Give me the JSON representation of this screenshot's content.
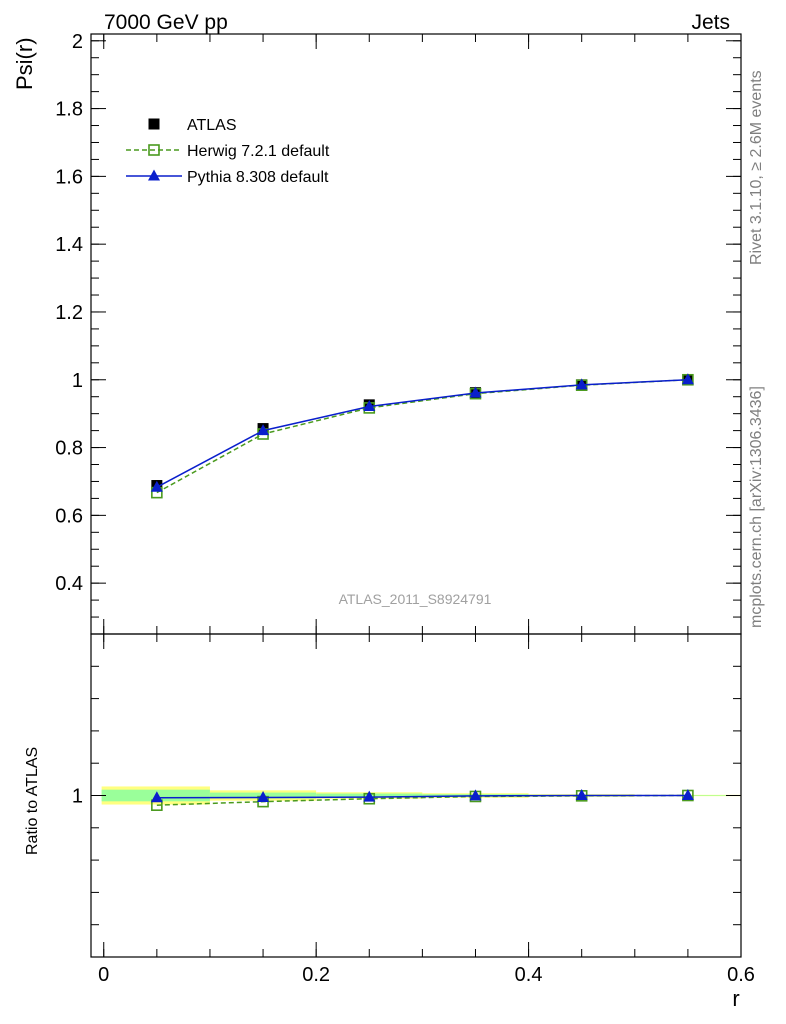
{
  "header": {
    "left_title": "7000 GeV pp",
    "right_title": "Jets"
  },
  "side_labels": {
    "rivet": "Rivet 3.1.10, ≥ 2.6M events",
    "mcplots": "mcplots.cern.ch [arXiv:1306.3436]"
  },
  "analysis_tag": "ATLAS_2011_S8924791",
  "chart_data": [
    {
      "type": "line",
      "panel": "main",
      "ylabel": "Psi(r)",
      "xlabel": "",
      "xlim": [
        -0.012,
        0.6
      ],
      "ylim": [
        0.25,
        2.02
      ],
      "x_ticks": [
        0,
        0.2,
        0.4,
        0.6
      ],
      "y_ticks": [
        0.4,
        0.6,
        0.8,
        1,
        1.2,
        1.4,
        1.6,
        1.8,
        2
      ],
      "y_tick_labels": [
        "0.4",
        "0.6",
        "0.8",
        "1",
        "1.2",
        "1.4",
        "1.6",
        "1.8",
        "2"
      ],
      "legend_position": "top-left",
      "x": [
        0.05,
        0.15,
        0.25,
        0.35,
        0.45,
        0.55
      ],
      "series": [
        {
          "name": "ATLAS",
          "values": [
            0.688,
            0.856,
            0.926,
            0.962,
            0.985,
            1.0
          ],
          "color": "#000000",
          "marker": "filled-square",
          "style": "points"
        },
        {
          "name": "Herwig 7.2.1 default",
          "values": [
            0.667,
            0.84,
            0.917,
            0.959,
            0.984,
            1.0
          ],
          "color": "#4a9a1e",
          "marker": "open-square",
          "style": "dashed"
        },
        {
          "name": "Pythia 8.308 default",
          "values": [
            0.683,
            0.85,
            0.921,
            0.961,
            0.985,
            1.0
          ],
          "color": "#0a1fcc",
          "marker": "triangle",
          "style": "solid"
        }
      ]
    },
    {
      "type": "line",
      "panel": "ratio",
      "ylabel": "Ratio to ATLAS",
      "xlabel": "r",
      "xlim": [
        -0.012,
        0.6
      ],
      "ylim": [
        0.5,
        1.5
      ],
      "x_ticks": [
        0,
        0.2,
        0.4,
        0.6
      ],
      "x_tick_labels": [
        "0",
        "0.2",
        "0.4",
        "0.6"
      ],
      "y_ticks": [
        1
      ],
      "y_tick_labels": [
        "1"
      ],
      "x": [
        0.05,
        0.15,
        0.25,
        0.35,
        0.45,
        0.55
      ],
      "bands": [
        {
          "x_range": [
            -0.002,
            0.1
          ],
          "stat_halfwidth": 0.018,
          "total_halfwidth": 0.028
        },
        {
          "x_range": [
            0.1,
            0.2
          ],
          "stat_halfwidth": 0.009,
          "total_halfwidth": 0.016
        },
        {
          "x_range": [
            0.2,
            0.3
          ],
          "stat_halfwidth": 0.006,
          "total_halfwidth": 0.01
        },
        {
          "x_range": [
            0.3,
            0.4
          ],
          "stat_halfwidth": 0.004,
          "total_halfwidth": 0.007
        },
        {
          "x_range": [
            0.4,
            0.5
          ],
          "stat_halfwidth": 0.002,
          "total_halfwidth": 0.004
        },
        {
          "x_range": [
            0.5,
            0.6
          ],
          "stat_halfwidth": 0.001,
          "total_halfwidth": 0.002
        }
      ],
      "series": [
        {
          "name": "Herwig 7.2.1 default",
          "values": [
            0.97,
            0.981,
            0.99,
            0.997,
            0.999,
            1.0
          ],
          "color": "#4a9a1e",
          "marker": "open-square",
          "style": "dashed"
        },
        {
          "name": "Pythia 8.308 default",
          "values": [
            0.993,
            0.994,
            0.995,
            0.999,
            1.0,
            1.0
          ],
          "color": "#0a1fcc",
          "marker": "triangle",
          "style": "solid"
        }
      ]
    }
  ]
}
